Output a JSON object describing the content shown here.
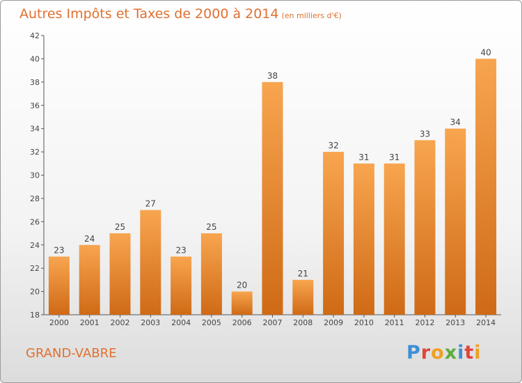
{
  "title": "Autres Impôts et Taxes de 2000 à 2014",
  "unit": "(en milliers d'€)",
  "city": "GRAND-VABRE",
  "brand": {
    "text": "Proxiti",
    "colors": [
      "#3d8fd6",
      "#e0453a",
      "#f0a020",
      "#5cae3a",
      "#3d8fd6",
      "#e0453a",
      "#f0a020"
    ]
  },
  "colors": {
    "bar_light": "#f8a54f",
    "bar_dark": "#cf6a16",
    "text_accent": "#e07030"
  },
  "chart_data": {
    "type": "bar",
    "categories": [
      "2000",
      "2001",
      "2002",
      "2003",
      "2004",
      "2005",
      "2006",
      "2007",
      "2008",
      "2009",
      "2010",
      "2011",
      "2012",
      "2013",
      "2014"
    ],
    "values": [
      23,
      24,
      25,
      27,
      23,
      25,
      20,
      38,
      21,
      32,
      31,
      31,
      33,
      34,
      40
    ],
    "ylim": [
      18,
      42
    ],
    "yticks": [
      18,
      20,
      22,
      24,
      26,
      28,
      30,
      32,
      34,
      36,
      38,
      40,
      42
    ],
    "grid": false
  }
}
